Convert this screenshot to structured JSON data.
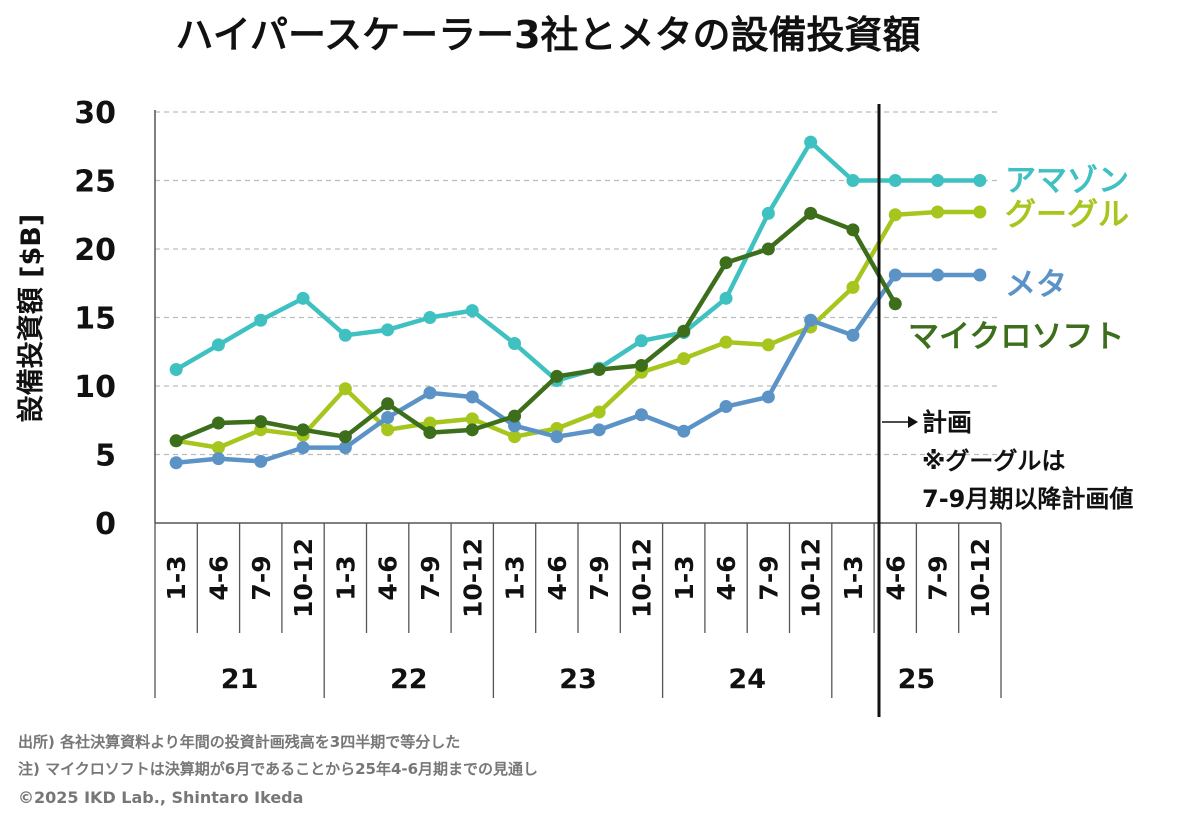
{
  "chart_data": {
    "type": "line",
    "title": "ハイパースケーラー3社とメタの設備投資額",
    "ylabel": "設備投資額 [$B]",
    "ylim": [
      0,
      30
    ],
    "yticks": [
      "0",
      "5",
      "10",
      "15",
      "20",
      "25",
      "30"
    ],
    "grid": true,
    "quarter_labels": [
      "1-3",
      "4-6",
      "7-9",
      "10-12",
      "1-3",
      "4-6",
      "7-9",
      "10-12",
      "1-3",
      "4-6",
      "7-9",
      "10-12",
      "1-3",
      "4-6",
      "7-9",
      "10-12",
      "1-3",
      "4-6",
      "7-9",
      "10-12"
    ],
    "years": [
      "21",
      "22",
      "23",
      "24",
      "25"
    ],
    "series": [
      {
        "name": "アマゾン",
        "color": "#3fc1c2",
        "values": [
          11.2,
          13.0,
          14.8,
          16.4,
          13.7,
          14.1,
          15.0,
          15.5,
          13.1,
          10.4,
          11.3,
          13.3,
          13.9,
          16.4,
          22.6,
          27.8,
          25.0,
          25.0,
          25.0,
          25.0
        ]
      },
      {
        "name": "グーグル",
        "color": "#a6c61e",
        "values": [
          6.0,
          5.5,
          6.8,
          6.4,
          9.8,
          6.8,
          7.3,
          7.6,
          6.3,
          6.9,
          8.1,
          11.0,
          12.0,
          13.2,
          13.0,
          14.3,
          17.2,
          22.5,
          22.7,
          22.7
        ]
      },
      {
        "name": "メタ",
        "color": "#5b93c7",
        "values": [
          4.4,
          4.7,
          4.5,
          5.5,
          5.5,
          7.7,
          9.5,
          9.2,
          7.1,
          6.3,
          6.8,
          7.9,
          6.7,
          8.5,
          9.2,
          14.8,
          13.7,
          18.1,
          18.1,
          18.1
        ]
      },
      {
        "name": "マイクロソフト",
        "color": "#3c6e1c",
        "values": [
          6.0,
          7.3,
          7.4,
          6.8,
          6.3,
          8.7,
          6.6,
          6.8,
          7.8,
          10.7,
          11.2,
          11.5,
          14.0,
          19.0,
          20.0,
          22.6,
          21.4,
          16.0,
          null,
          null
        ]
      }
    ],
    "annotations": {
      "plan_label": "計画",
      "note_line1": "※グーグルは",
      "note_line2": "7-9月期以降計画値"
    }
  },
  "footnotes": {
    "source": "出所) 各社決算資料より年間の投資計画残高を3四半期で等分した",
    "note": "注) マイクロソフトは決算期が6月であることから25年4-6月期までの見通し",
    "copyright": "©2025 IKD Lab., Shintaro Ikeda"
  }
}
